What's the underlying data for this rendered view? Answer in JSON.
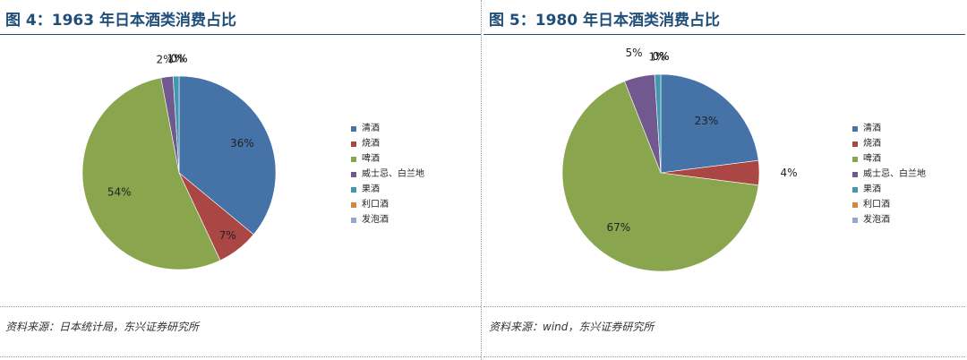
{
  "chart_data": [
    {
      "type": "pie",
      "title": "图 4：1963 年日本酒类消费占比",
      "source": "资料来源：日本统计局，东兴证券研究所",
      "legend_position": "right",
      "categories": [
        "清酒",
        "烧酒",
        "啤酒",
        "威士忌、白兰地",
        "果酒",
        "利口酒",
        "发泡酒"
      ],
      "values": [
        36,
        7,
        54,
        2,
        1,
        0,
        0
      ],
      "labels": [
        "36%",
        "7%",
        "54%",
        "2%",
        "1%",
        "0%",
        "0%"
      ],
      "colors": [
        "#4572a7",
        "#aa4643",
        "#89a54e",
        "#71588f",
        "#4198af",
        "#db843d",
        "#93a9cf"
      ]
    },
    {
      "type": "pie",
      "title": "图 5：1980 年日本酒类消费占比",
      "source": "资料来源：wind，东兴证券研究所",
      "legend_position": "right",
      "categories": [
        "清酒",
        "烧酒",
        "啤酒",
        "威士忌、白兰地",
        "果酒",
        "利口酒",
        "发泡酒"
      ],
      "values": [
        23,
        4,
        67,
        5,
        1,
        0,
        0
      ],
      "labels": [
        "23%",
        "4%",
        "67%",
        "5%",
        "1%",
        "0%",
        "0%"
      ],
      "colors": [
        "#4572a7",
        "#aa4643",
        "#89a54e",
        "#71588f",
        "#4198af",
        "#db843d",
        "#93a9cf"
      ]
    }
  ]
}
